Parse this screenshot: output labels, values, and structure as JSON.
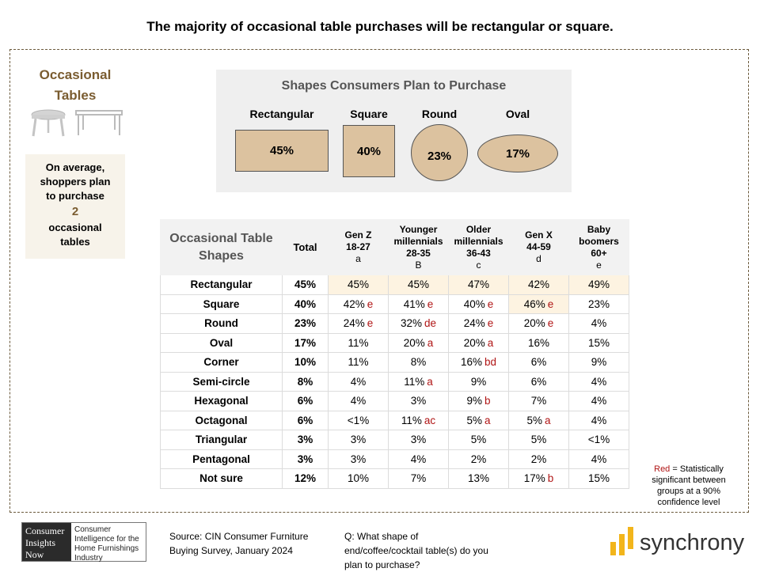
{
  "title": "The majority of occasional table purchases will be rectangular or square.",
  "side": {
    "title_line1": "Occasional",
    "title_line2": "Tables",
    "avg_line1": "On average,",
    "avg_line2": "shoppers plan",
    "avg_line3": "to purchase",
    "avg_number": "2",
    "avg_line4": "occasional",
    "avg_line5": "tables"
  },
  "shapes_panel": {
    "title": "Shapes Consumers Plan to Purchase",
    "items": [
      {
        "label": "Rectangular",
        "value": "45%"
      },
      {
        "label": "Square",
        "value": "40%"
      },
      {
        "label": "Round",
        "value": "23%"
      },
      {
        "label": "Oval",
        "value": "17%"
      }
    ]
  },
  "table": {
    "header_title": "Occasional Table Shapes",
    "header_total": "Total",
    "columns": [
      {
        "name": "Gen Z",
        "ages": "18-27",
        "code": "a"
      },
      {
        "name": "Younger millennials",
        "ages": "28-35",
        "code": "B"
      },
      {
        "name": "Older millennials",
        "ages": "36-43",
        "code": "c"
      },
      {
        "name": "Gen X",
        "ages": "44-59",
        "code": "d"
      },
      {
        "name": "Baby boomers",
        "ages": "60+",
        "code": "e"
      }
    ],
    "rows": [
      {
        "label": "Rectangular",
        "total": "45%",
        "cells": [
          [
            "45%",
            ""
          ],
          [
            "45%",
            ""
          ],
          [
            "47%",
            ""
          ],
          [
            "42%",
            ""
          ],
          [
            "49%",
            ""
          ]
        ]
      },
      {
        "label": "Square",
        "total": "40%",
        "cells": [
          [
            "42%",
            "e"
          ],
          [
            "41%",
            "e"
          ],
          [
            "40%",
            "e"
          ],
          [
            "46%",
            "e"
          ],
          [
            "23%",
            ""
          ]
        ]
      },
      {
        "label": "Round",
        "total": "23%",
        "cells": [
          [
            "24%",
            "e"
          ],
          [
            "32%",
            "de"
          ],
          [
            "24%",
            "e"
          ],
          [
            "20%",
            "e"
          ],
          [
            "4%",
            ""
          ]
        ]
      },
      {
        "label": "Oval",
        "total": "17%",
        "cells": [
          [
            "11%",
            ""
          ],
          [
            "20%",
            "a"
          ],
          [
            "20%",
            "a"
          ],
          [
            "16%",
            ""
          ],
          [
            "15%",
            ""
          ]
        ]
      },
      {
        "label": "Corner",
        "total": "10%",
        "cells": [
          [
            "11%",
            ""
          ],
          [
            "8%",
            ""
          ],
          [
            "16%",
            "bd"
          ],
          [
            "6%",
            ""
          ],
          [
            "9%",
            ""
          ]
        ]
      },
      {
        "label": "Semi-circle",
        "total": "8%",
        "cells": [
          [
            "4%",
            ""
          ],
          [
            "11%",
            "a"
          ],
          [
            "9%",
            ""
          ],
          [
            "6%",
            ""
          ],
          [
            "4%",
            ""
          ]
        ]
      },
      {
        "label": "Hexagonal",
        "total": "6%",
        "cells": [
          [
            "4%",
            ""
          ],
          [
            "3%",
            ""
          ],
          [
            "9%",
            "b"
          ],
          [
            "7%",
            ""
          ],
          [
            "4%",
            ""
          ]
        ]
      },
      {
        "label": "Octagonal",
        "total": "6%",
        "cells": [
          [
            "<1%",
            ""
          ],
          [
            "11%",
            "ac"
          ],
          [
            "5%",
            "a"
          ],
          [
            "5%",
            "a"
          ],
          [
            "4%",
            ""
          ]
        ]
      },
      {
        "label": "Triangular",
        "total": "3%",
        "cells": [
          [
            "3%",
            ""
          ],
          [
            "3%",
            ""
          ],
          [
            "5%",
            ""
          ],
          [
            "5%",
            ""
          ],
          [
            "<1%",
            ""
          ]
        ]
      },
      {
        "label": "Pentagonal",
        "total": "3%",
        "cells": [
          [
            "3%",
            ""
          ],
          [
            "4%",
            ""
          ],
          [
            "2%",
            ""
          ],
          [
            "2%",
            ""
          ],
          [
            "4%",
            ""
          ]
        ]
      },
      {
        "label": "Not sure",
        "total": "12%",
        "cells": [
          [
            "10%",
            ""
          ],
          [
            "7%",
            ""
          ],
          [
            "13%",
            ""
          ],
          [
            "17%",
            "b"
          ],
          [
            "15%",
            ""
          ]
        ]
      }
    ]
  },
  "note": {
    "red_word": "Red",
    "text": "= Statistically significant between groups at a 90% confidence level"
  },
  "footer": {
    "cin_left": "Consumer Insights Now",
    "cin_right": "Consumer Intelligence for the Home Furnishings Industry",
    "source": "Source: CIN Consumer Furniture Buying Survey, January 2024",
    "question": "Q: What shape of end/coffee/cocktail table(s) do you plan to purchase?",
    "brand": "synchrony"
  },
  "colors": {
    "accent_brown": "#7a5c30",
    "shape_fill": "#dcc29f",
    "significance_red": "#b01515",
    "highlight": "#fdf3e1",
    "synchrony_gold": "#f2b51b"
  }
}
